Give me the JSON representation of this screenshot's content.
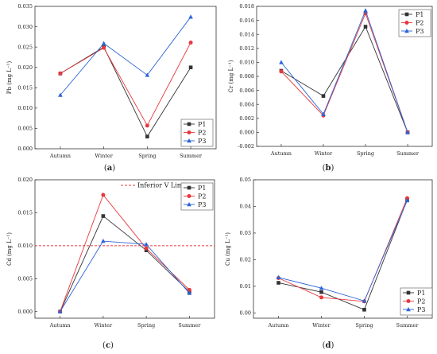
{
  "chart_data": [
    {
      "type": "line",
      "panel": "a",
      "ylabel": "Pb (mg L⁻¹)",
      "categories": [
        "Autumn",
        "Winter",
        "Spring",
        "Summer"
      ],
      "ylim": [
        0,
        0.035
      ],
      "yticks": [
        "0.000",
        "0.005",
        "0.010",
        "0.015",
        "0.020",
        "0.025",
        "0.030",
        "0.035"
      ],
      "yticks_val": [
        0,
        0.005,
        0.01,
        0.015,
        0.02,
        0.025,
        0.03,
        0.035
      ],
      "legend_position": "bottom-right",
      "series": [
        {
          "name": "P1",
          "color": "#333333",
          "marker": "square",
          "values": [
            0.0185,
            0.025,
            0.003,
            0.02
          ]
        },
        {
          "name": "P2",
          "color": "#e8383d",
          "marker": "circle",
          "values": [
            0.0185,
            0.0248,
            0.0057,
            0.0261
          ]
        },
        {
          "name": "P3",
          "color": "#2a64d6",
          "marker": "triangle",
          "values": [
            0.0132,
            0.0259,
            0.0181,
            0.0324
          ]
        }
      ]
    },
    {
      "type": "line",
      "panel": "b",
      "ylabel": "Cr (mg L⁻¹)",
      "categories": [
        "Autumn",
        "Winter",
        "Spring",
        "Summer"
      ],
      "ylim": [
        -0.002,
        0.018
      ],
      "yticks": [
        "-0.002",
        "0.000",
        "0.002",
        "0.004",
        "0.006",
        "0.008",
        "0.010",
        "0.012",
        "0.014",
        "0.016",
        "0.018"
      ],
      "yticks_val": [
        -0.002,
        0,
        0.002,
        0.004,
        0.006,
        0.008,
        0.01,
        0.012,
        0.014,
        0.016,
        0.018
      ],
      "legend_position": "top-right",
      "series": [
        {
          "name": "P1",
          "color": "#333333",
          "marker": "square",
          "values": [
            0.0088,
            0.0052,
            0.0151,
            0.0
          ]
        },
        {
          "name": "P2",
          "color": "#e8383d",
          "marker": "circle",
          "values": [
            0.0087,
            0.0024,
            0.017,
            0.0
          ]
        },
        {
          "name": "P3",
          "color": "#2a64d6",
          "marker": "triangle",
          "values": [
            0.01,
            0.0026,
            0.0174,
            0.0
          ]
        }
      ]
    },
    {
      "type": "line",
      "panel": "c",
      "ylabel": "Cd (mg L⁻¹)",
      "categories": [
        "Autumn",
        "Winter",
        "Spring",
        "Summer"
      ],
      "ylim": [
        -0.001,
        0.02
      ],
      "yticks": [
        "0.000",
        "0.005",
        "0.010",
        "0.015",
        "0.020"
      ],
      "yticks_val": [
        0,
        0.005,
        0.01,
        0.015,
        0.02
      ],
      "legend_position": "top-right",
      "reference_line": {
        "label": "Inferior V Limit",
        "value": 0.01,
        "color": "#e8383d"
      },
      "series": [
        {
          "name": "P1",
          "color": "#333333",
          "marker": "square",
          "values": [
            0.0,
            0.0145,
            0.0093,
            0.003
          ]
        },
        {
          "name": "P2",
          "color": "#e8383d",
          "marker": "circle",
          "values": [
            0.0,
            0.0177,
            0.0096,
            0.0033
          ]
        },
        {
          "name": "P3",
          "color": "#2a64d6",
          "marker": "triangle",
          "values": [
            0.0,
            0.0107,
            0.0102,
            0.0028
          ]
        }
      ]
    },
    {
      "type": "line",
      "panel": "d",
      "ylabel": "Cu (mg L⁻¹)",
      "categories": [
        "Autumn",
        "Winter",
        "Spring",
        "Summer"
      ],
      "ylim": [
        -0.002,
        0.05
      ],
      "yticks": [
        "0.00",
        "0.01",
        "0.02",
        "0.03",
        "0.04",
        "0.05"
      ],
      "yticks_val": [
        0,
        0.01,
        0.02,
        0.03,
        0.04,
        0.05
      ],
      "legend_position": "bottom-right",
      "series": [
        {
          "name": "P1",
          "color": "#333333",
          "marker": "square",
          "values": [
            0.0113,
            0.0078,
            0.0012,
            0.0425
          ]
        },
        {
          "name": "P2",
          "color": "#e8383d",
          "marker": "circle",
          "values": [
            0.0131,
            0.0058,
            0.0043,
            0.0431
          ]
        },
        {
          "name": "P3",
          "color": "#2a64d6",
          "marker": "triangle",
          "values": [
            0.0133,
            0.0093,
            0.0045,
            0.0422
          ]
        }
      ]
    }
  ],
  "panel_labels": {
    "a": {
      "open": "(",
      "letter": "a",
      "close": ")"
    },
    "b": {
      "open": "(",
      "letter": "b",
      "close": ")"
    },
    "c": {
      "open": "(",
      "letter": "c",
      "close": ")"
    },
    "d": {
      "open": "(",
      "letter": "d",
      "close": ")"
    }
  }
}
